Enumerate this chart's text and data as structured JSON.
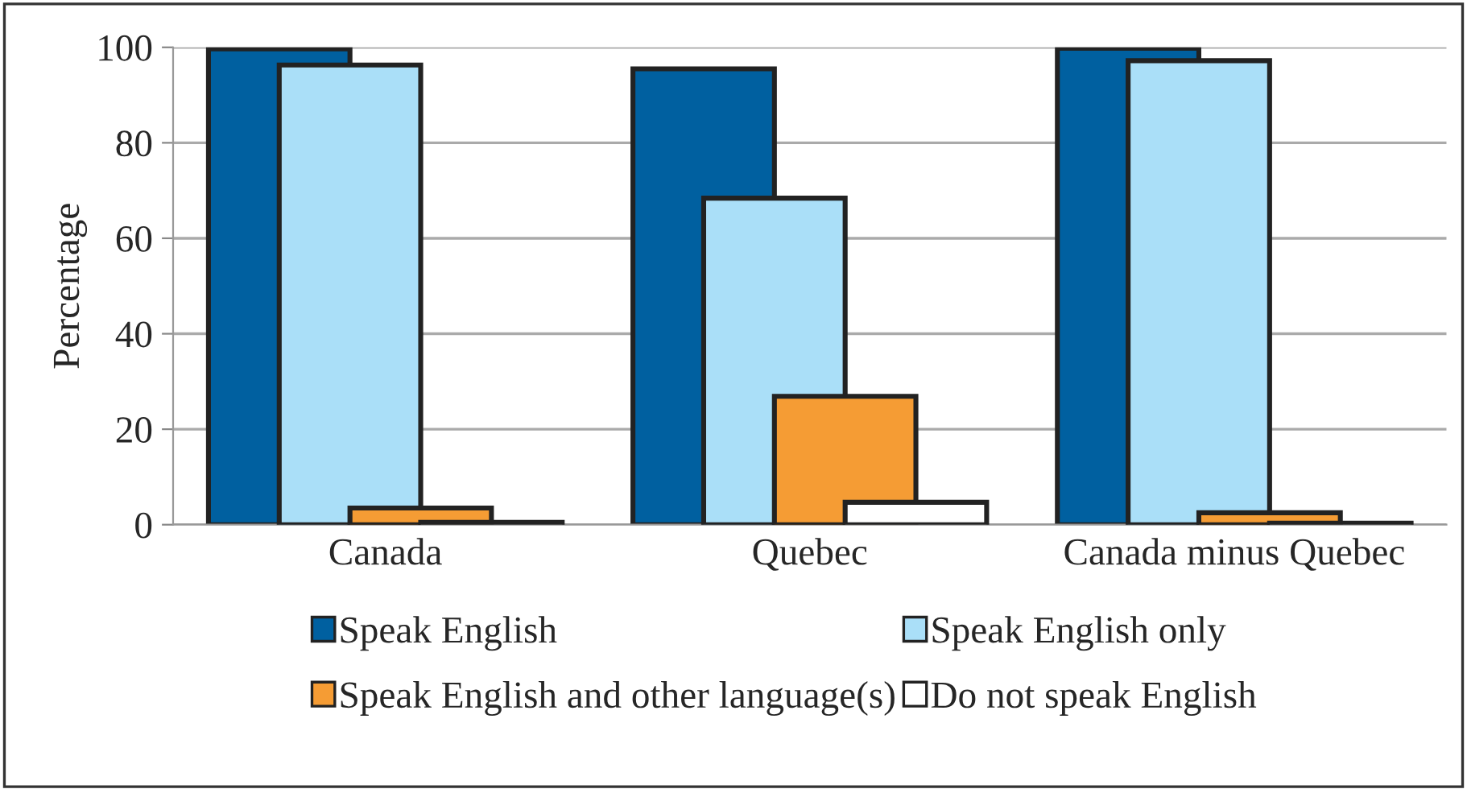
{
  "chart_data": {
    "type": "bar",
    "ylabel": "Percentage",
    "categories": [
      "Canada",
      "Quebec",
      "Canada minus Quebec"
    ],
    "series": [
      {
        "name": "Speak English",
        "color": "#0060a0",
        "values": [
          99.7,
          95.5,
          99.8
        ]
      },
      {
        "name": "Speak English only",
        "color": "#aadff8",
        "values": [
          96.3,
          68.4,
          97.2
        ]
      },
      {
        "name": "Speak English and other language(s)",
        "color": "#f59c34",
        "values": [
          3.5,
          26.9,
          2.5
        ]
      },
      {
        "name": "Do not speak English",
        "color": "#ffffff",
        "values": [
          0.5,
          4.7,
          0.3
        ]
      }
    ],
    "ylim": [
      0,
      100
    ],
    "yticks": [
      0,
      20,
      40,
      60,
      80,
      100
    ],
    "grid": "y",
    "legend": "bottom"
  }
}
